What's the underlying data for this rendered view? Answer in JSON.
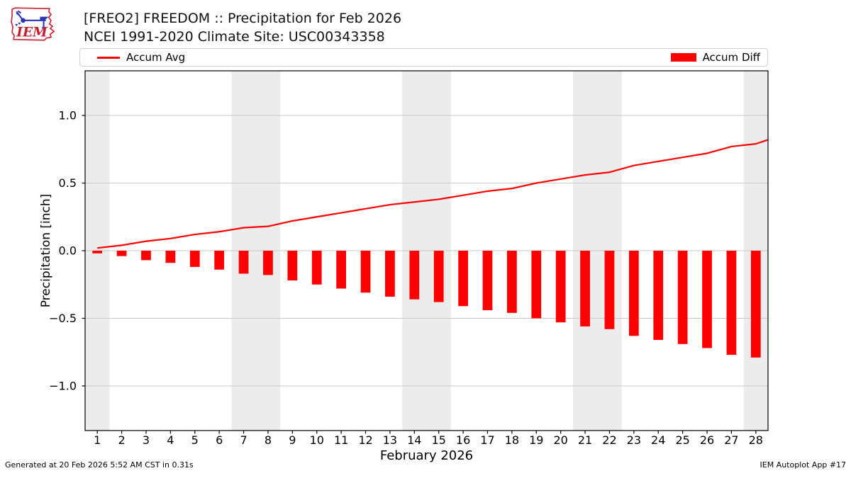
{
  "page": {
    "footer_left": "Generated at 20 Feb 2026 5:52 AM CST in 0.31s",
    "footer_right": "IEM Autoplot App #17"
  },
  "logo": {
    "text": "IEM",
    "outline_color": "#cc2233",
    "vane_color": "#2a35b8",
    "text_color": "#c41f30"
  },
  "header": {
    "title": "[FREO2] FREEDOM :: Precipitation for Feb 2026",
    "subtitle": "NCEI 1991-2020 Climate Site: USC00343358"
  },
  "legend": {
    "items": [
      {
        "label": "Accum Avg",
        "swatch": "line",
        "color": "#ff0000"
      },
      {
        "label": "Accum Diff",
        "swatch": "bar",
        "color": "#ff0000"
      }
    ]
  },
  "chart_data": {
    "type": "combo-line-bar",
    "xlabel": "February 2026",
    "ylabel": "Precipitation [inch]",
    "xlim": [
      0.5,
      28.5
    ],
    "ylim": [
      -1.33,
      1.33
    ],
    "grid": true,
    "x_ticks": [
      1,
      2,
      3,
      4,
      5,
      6,
      7,
      8,
      9,
      10,
      11,
      12,
      13,
      14,
      15,
      16,
      17,
      18,
      19,
      20,
      21,
      22,
      23,
      24,
      25,
      26,
      27,
      28
    ],
    "y_ticks": [
      {
        "value": 1.0,
        "label": "1.0"
      },
      {
        "value": 0.5,
        "label": "0.5"
      },
      {
        "value": 0.0,
        "label": "0.0"
      },
      {
        "value": -0.5,
        "label": "−0.5"
      },
      {
        "value": -1.0,
        "label": "−1.0"
      }
    ],
    "weekend_shading_x": [
      [
        0.5,
        1.5
      ],
      [
        6.5,
        8.5
      ],
      [
        13.5,
        15.5
      ],
      [
        20.5,
        22.5
      ],
      [
        27.5,
        28.5
      ]
    ],
    "days": [
      1,
      2,
      3,
      4,
      5,
      6,
      7,
      8,
      9,
      10,
      11,
      12,
      13,
      14,
      15,
      16,
      17,
      18,
      19,
      20,
      21,
      22,
      23,
      24,
      25,
      26,
      27,
      28
    ],
    "series": [
      {
        "name": "Accum Avg",
        "type": "line",
        "color": "#ff0000",
        "x": [
          1,
          2,
          3,
          4,
          5,
          6,
          7,
          8,
          9,
          10,
          11,
          12,
          13,
          14,
          15,
          16,
          17,
          18,
          19,
          20,
          21,
          22,
          23,
          24,
          25,
          26,
          27,
          28,
          28.5
        ],
        "values": [
          0.02,
          0.04,
          0.07,
          0.09,
          0.12,
          0.14,
          0.17,
          0.18,
          0.22,
          0.25,
          0.28,
          0.31,
          0.34,
          0.36,
          0.38,
          0.41,
          0.44,
          0.46,
          0.5,
          0.53,
          0.56,
          0.58,
          0.63,
          0.66,
          0.69,
          0.72,
          0.77,
          0.79,
          0.82
        ]
      },
      {
        "name": "Accum Diff",
        "type": "bar",
        "color": "#ff0000",
        "x": [
          1,
          2,
          3,
          4,
          5,
          6,
          7,
          8,
          9,
          10,
          11,
          12,
          13,
          14,
          15,
          16,
          17,
          18,
          19,
          20,
          21,
          22,
          23,
          24,
          25,
          26,
          27,
          28
        ],
        "values": [
          -0.02,
          -0.04,
          -0.07,
          -0.09,
          -0.12,
          -0.14,
          -0.17,
          -0.18,
          -0.22,
          -0.25,
          -0.28,
          -0.31,
          -0.34,
          -0.36,
          -0.38,
          -0.41,
          -0.44,
          -0.46,
          -0.5,
          -0.53,
          -0.56,
          -0.58,
          -0.63,
          -0.66,
          -0.69,
          -0.72,
          -0.77,
          -0.79
        ]
      }
    ],
    "colors": {
      "weekend_band": "#ececec",
      "grid": "#c9c9c9",
      "spine": "#000000",
      "tick_text": "#000000"
    }
  }
}
